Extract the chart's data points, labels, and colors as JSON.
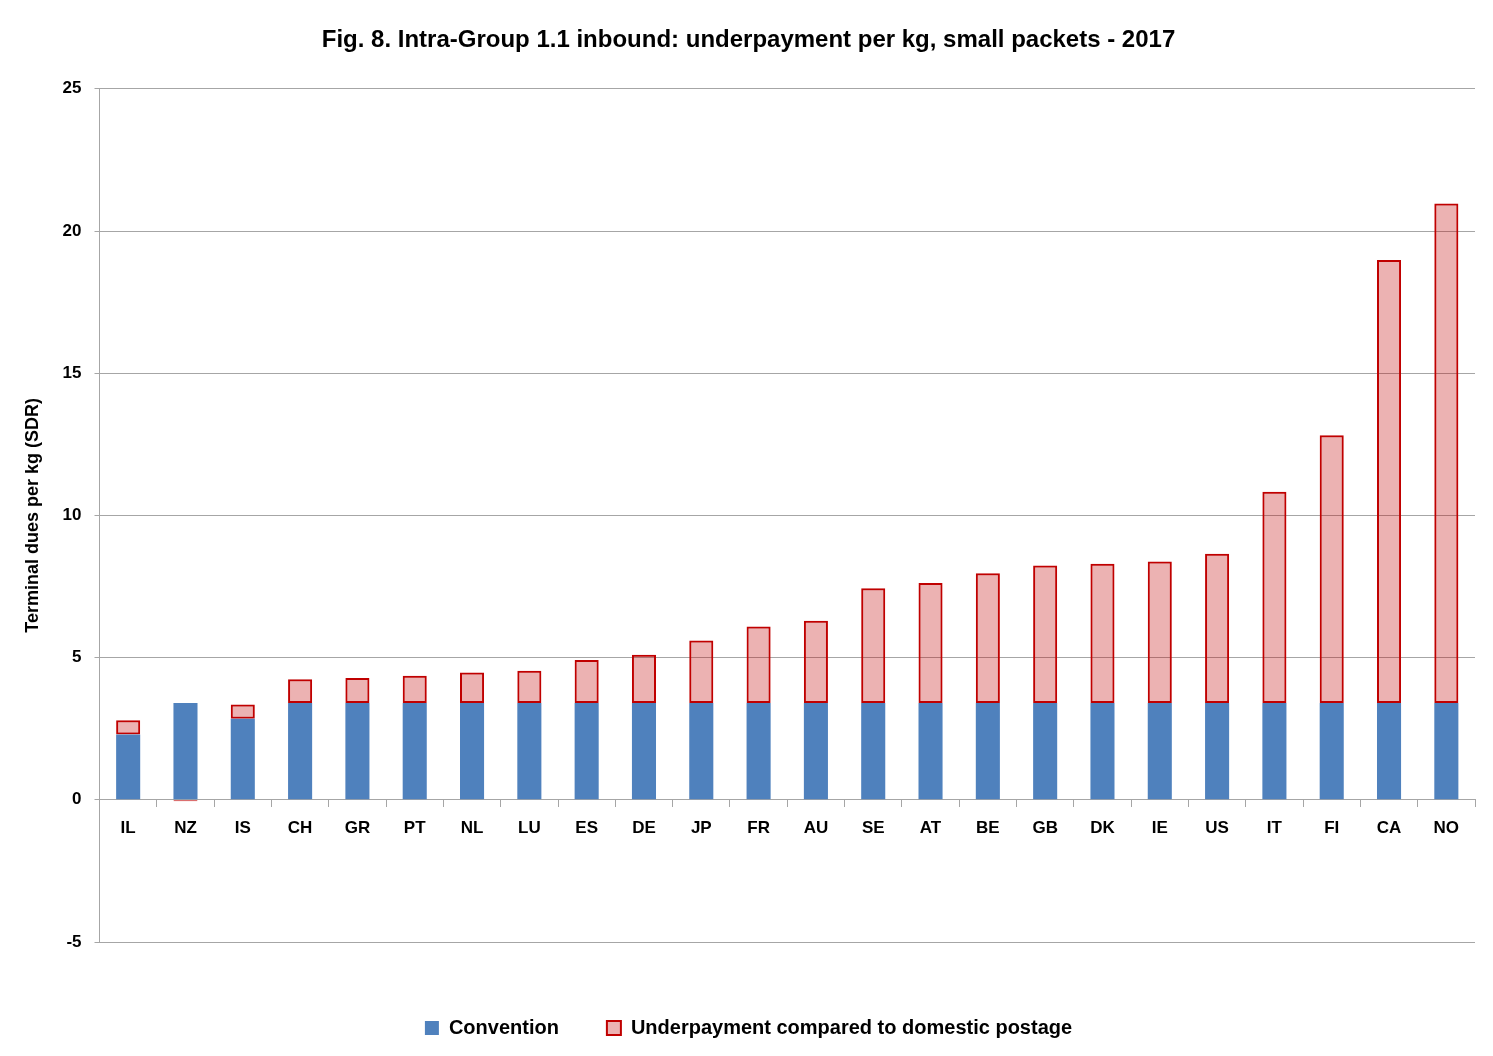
{
  "chart_data": {
    "type": "bar",
    "title": "Fig. 8. Intra-Group 1.1 inbound: underpayment per kg, small packets - 2017",
    "ylabel": "Terminal dues per kg (SDR)",
    "categories": [
      "IL",
      "NZ",
      "IS",
      "CH",
      "GR",
      "PT",
      "NL",
      "LU",
      "ES",
      "DE",
      "JP",
      "FR",
      "AU",
      "SE",
      "AT",
      "BE",
      "GB",
      "DK",
      "IE",
      "US",
      "IT",
      "FI",
      "CA",
      "NO"
    ],
    "series": [
      {
        "name": "Convention",
        "color": "#4f81bd",
        "values": [
          2.3,
          3.4,
          2.85,
          3.4,
          3.4,
          3.4,
          3.4,
          3.4,
          3.4,
          3.4,
          3.4,
          3.4,
          3.4,
          3.4,
          3.4,
          3.4,
          3.4,
          3.4,
          3.4,
          3.4,
          3.4,
          3.4,
          3.4,
          3.4
        ]
      },
      {
        "name": "Underpayment compared to domestic postage",
        "color": "#c00000",
        "values": [
          0.5,
          -0.05,
          0.5,
          0.84,
          0.88,
          0.96,
          1.08,
          1.14,
          1.52,
          1.7,
          2.2,
          2.69,
          2.9,
          4.04,
          4.22,
          4.57,
          4.84,
          4.9,
          4.98,
          5.25,
          7.43,
          9.42,
          15.58,
          17.57
        ]
      }
    ],
    "stacked": true,
    "ylim": [
      -5,
      25
    ],
    "yticks": [
      -5,
      0,
      5,
      10,
      15,
      20,
      25
    ],
    "grid": "y",
    "legend": "bottom"
  }
}
